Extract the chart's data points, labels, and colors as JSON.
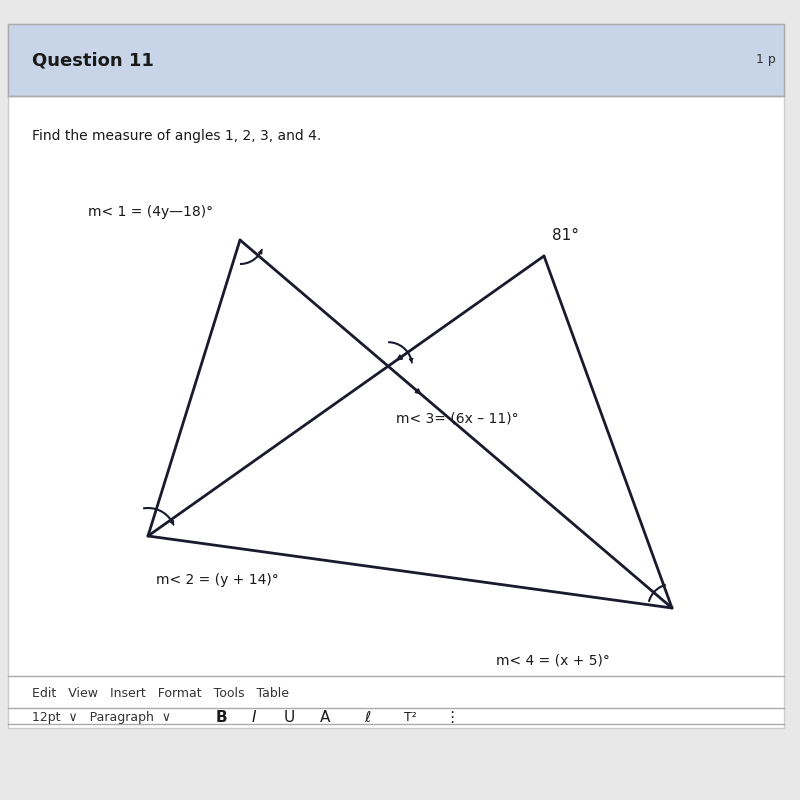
{
  "bg_color": "#e8e8e8",
  "page_bg": "#ffffff",
  "header_bg": "#c8d4e8",
  "header_text": "Question 11",
  "header_right": "1 p",
  "instruction": "Find the measure of angles 1, 2, 3, and 4.",
  "label_angle1": "m< 1 = (4y—18)°",
  "label_angle2": "m< 2 = (y + 14)°",
  "label_angle3": "m< 3= (6x – 11)°",
  "label_angle4": "m< 4 = (x + 5)°",
  "label_81": "81°",
  "toolbar": "Edit   View   Insert   Format   Tools   Table",
  "toolbar2": "12pt",
  "toolbar3": "Paragraph",
  "line_color": "#1a1a2e",
  "line_width": 2.0,
  "font_size_header": 13,
  "font_size_label": 10,
  "font_size_instruction": 10
}
